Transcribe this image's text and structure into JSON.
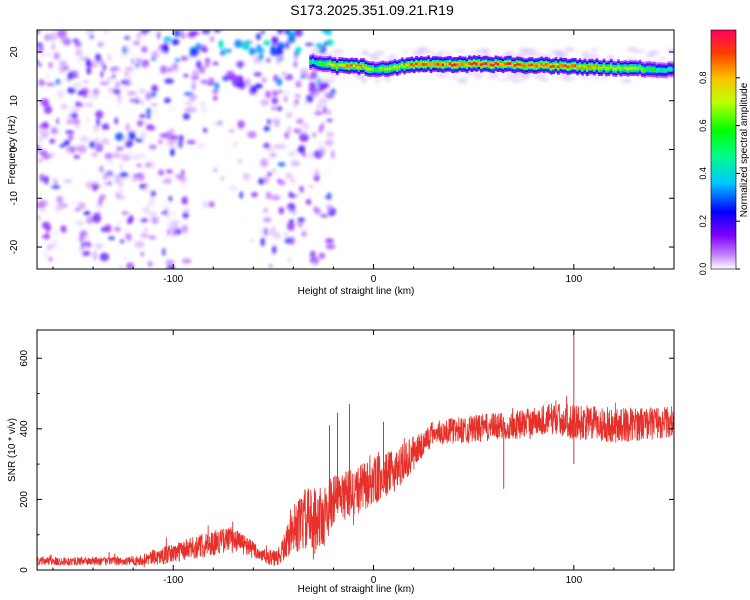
{
  "title": "S173.2025.351.09.21.R19",
  "chart_data": [
    {
      "type": "heatmap",
      "xlabel": "Height of straight line (km)",
      "ylabel": "Frequency (Hz)",
      "xlim": [
        -168,
        150
      ],
      "ylim": [
        -24.5,
        24.5
      ],
      "xticks": [
        -100,
        0,
        100
      ],
      "yticks": [
        -20,
        -10,
        0,
        10,
        20
      ],
      "colorbar": {
        "label": "Normalized spectral amplitude",
        "range": [
          0,
          1
        ],
        "ticks": [
          "0.0",
          "0.2",
          "0.4",
          "0.6",
          "0.8"
        ],
        "colormap": [
          "#ffffff",
          "#8000ff",
          "#0000ff",
          "#00ffff",
          "#00ff00",
          "#ffff00",
          "#ff8000",
          "#ff0040"
        ]
      },
      "ridge": {
        "description_points_x": [
          -30,
          -20,
          -5,
          0,
          20,
          60,
          100,
          130,
          150
        ],
        "description_points_y": [
          18.0,
          17.2,
          17.0,
          16.2,
          17.5,
          17.5,
          17.0,
          16.6,
          16.2
        ],
        "amplitude": [
          0.5,
          0.85,
          0.9,
          0.6,
          0.95,
          0.95,
          0.9,
          0.7,
          0.45
        ]
      },
      "noise_region_x": [
        -168,
        -30
      ],
      "noise_amplitude_range": [
        0.0,
        0.35
      ]
    },
    {
      "type": "line",
      "xlabel": "Height of straight line (km)",
      "ylabel": "SNR (10 * v/v)",
      "xlim": [
        -168,
        150
      ],
      "ylim": [
        0,
        680
      ],
      "xticks": [
        -100,
        0,
        100
      ],
      "yticks": [
        0,
        200,
        400,
        600
      ],
      "color": "#e8302a",
      "trend_x": [
        -168,
        -120,
        -105,
        -85,
        -70,
        -55,
        -48,
        -40,
        -35,
        -25,
        -20,
        -10,
        0,
        10,
        20,
        30,
        50,
        70,
        90,
        100,
        120,
        150
      ],
      "trend_y": [
        25,
        25,
        40,
        70,
        90,
        40,
        30,
        110,
        140,
        150,
        200,
        220,
        250,
        280,
        330,
        390,
        400,
        410,
        430,
        420,
        410,
        420
      ],
      "noise_amplitude": [
        12,
        12,
        25,
        35,
        35,
        20,
        25,
        60,
        90,
        90,
        70,
        70,
        70,
        60,
        50,
        35,
        40,
        40,
        45,
        50,
        50,
        45
      ],
      "spikes": [
        [
          -18,
          445
        ],
        [
          -22,
          410
        ],
        [
          -30,
          30
        ],
        [
          5,
          420
        ],
        [
          -12,
          470
        ],
        [
          100,
          680
        ],
        [
          65,
          230
        ],
        [
          100,
          300
        ]
      ]
    }
  ]
}
